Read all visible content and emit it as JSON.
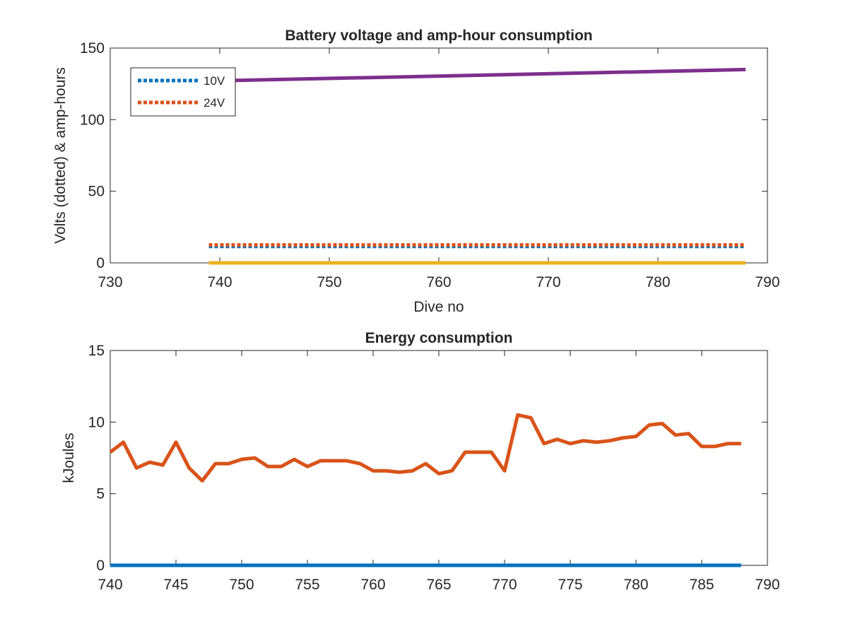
{
  "chart_data": [
    {
      "type": "line",
      "title": "Battery voltage and amp-hour consumption",
      "xlabel": "Dive no",
      "ylabel": "Volts (dotted) & amp-hours",
      "xlim": [
        730,
        790
      ],
      "ylim": [
        0,
        150
      ],
      "xticks": [
        730,
        740,
        750,
        760,
        770,
        780,
        790
      ],
      "yticks": [
        0,
        50,
        100,
        150
      ],
      "legend_placement": "top-left",
      "series": [
        {
          "name": "10V",
          "style": "dotted",
          "color": "#0072BD",
          "x": [
            739,
            788
          ],
          "y": [
            11.5,
            11.5
          ]
        },
        {
          "name": "24V",
          "style": "dotted",
          "color": "#D95319",
          "x": [
            739,
            788
          ],
          "y": [
            12.5,
            12.5
          ]
        },
        {
          "style": "solid",
          "color": "#7E2F8E",
          "x": [
            739,
            788
          ],
          "y": [
            127,
            135
          ]
        },
        {
          "style": "solid",
          "color": "#EDB120",
          "x": [
            739,
            788
          ],
          "y": [
            0,
            0
          ]
        }
      ]
    },
    {
      "type": "line",
      "title": "Energy consumption",
      "xlabel": "",
      "ylabel": "kJoules",
      "xlim": [
        740,
        790
      ],
      "ylim": [
        0,
        15
      ],
      "xticks": [
        740,
        745,
        750,
        755,
        760,
        765,
        770,
        775,
        780,
        785,
        790
      ],
      "yticks": [
        0,
        5,
        10,
        15
      ],
      "series": [
        {
          "style": "solid",
          "color": "#D95319",
          "x": [
            740,
            741,
            742,
            743,
            744,
            745,
            746,
            747,
            748,
            749,
            750,
            751,
            752,
            753,
            754,
            755,
            756,
            757,
            758,
            759,
            760,
            761,
            762,
            763,
            764,
            765,
            766,
            767,
            768,
            769,
            770,
            771,
            772,
            773,
            774,
            775,
            776,
            777,
            778,
            779,
            780,
            781,
            782,
            783,
            784,
            785,
            786,
            787,
            788
          ],
          "y": [
            7.9,
            8.6,
            6.8,
            7.2,
            7.0,
            8.6,
            6.8,
            5.9,
            7.1,
            7.1,
            7.4,
            7.5,
            6.9,
            6.9,
            7.4,
            6.9,
            7.3,
            7.3,
            7.3,
            7.1,
            6.6,
            6.6,
            6.5,
            6.6,
            7.1,
            6.4,
            6.6,
            7.9,
            7.9,
            7.9,
            6.6,
            10.5,
            10.3,
            8.5,
            8.8,
            8.5,
            8.7,
            8.6,
            8.7,
            8.9,
            9.0,
            9.8,
            9.9,
            9.1,
            9.2,
            8.3,
            8.3,
            8.5,
            8.5
          ]
        },
        {
          "style": "solid",
          "color": "#0072BD",
          "x": [
            740,
            788
          ],
          "y": [
            0,
            0
          ]
        }
      ]
    }
  ]
}
